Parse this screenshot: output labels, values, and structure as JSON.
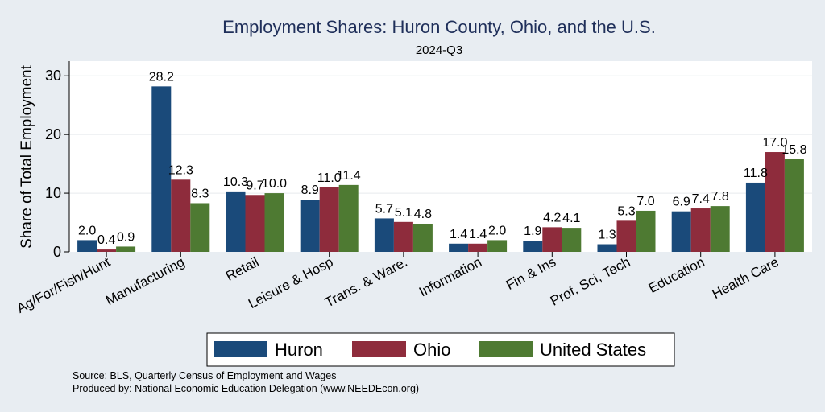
{
  "chart_data": {
    "type": "bar",
    "title": "Employment Shares: Huron County, Ohio, and the U.S.",
    "subtitle": "2024-Q3",
    "ylabel": "Share of Total Employment",
    "xlabel": "",
    "ylim": [
      0,
      32.5
    ],
    "yticks": [
      0,
      10,
      20,
      30
    ],
    "grid": true,
    "legend_position": "bottom",
    "categories": [
      "Ag/For/Fish/Hunt",
      "Manufacturing",
      "Retail",
      "Leisure & Hosp",
      "Trans. & Ware.",
      "Information",
      "Fin & Ins",
      "Prof, Sci, Tech",
      "Education",
      "Health Care"
    ],
    "series": [
      {
        "name": "Huron",
        "color": "#1a4a7a",
        "values": [
          2.0,
          28.2,
          10.3,
          8.9,
          5.7,
          1.4,
          1.9,
          1.3,
          6.9,
          11.8
        ],
        "labels": [
          "2.0",
          "28.2",
          "10.3",
          "8.9",
          "5.7",
          "1.4",
          "1.9",
          "1.3",
          "6.9",
          "11.8"
        ]
      },
      {
        "name": "Ohio",
        "color": "#8e2c3c",
        "values": [
          0.4,
          12.3,
          9.7,
          11.0,
          5.1,
          1.4,
          4.2,
          5.3,
          7.4,
          17.0
        ],
        "labels": [
          "0.4",
          "12.3",
          "9.7",
          "11.0",
          "5.1",
          "1.4",
          "4.2",
          "5.3",
          "7.4",
          "17.0"
        ]
      },
      {
        "name": "United States",
        "color": "#4e7a32",
        "values": [
          0.9,
          8.3,
          10.0,
          11.4,
          4.8,
          2.0,
          4.1,
          7.0,
          7.8,
          15.8
        ],
        "labels": [
          "0.9",
          "8.3",
          "10.0",
          "11.4",
          "4.8",
          "2.0",
          "4.1",
          "7.0",
          "7.8",
          "15.8"
        ]
      }
    ],
    "source_lines": [
      "Source: BLS, Quarterly Census of Employment and Wages",
      "Produced by: National Economic Education Delegation (www.NEEDEcon.org)"
    ]
  }
}
